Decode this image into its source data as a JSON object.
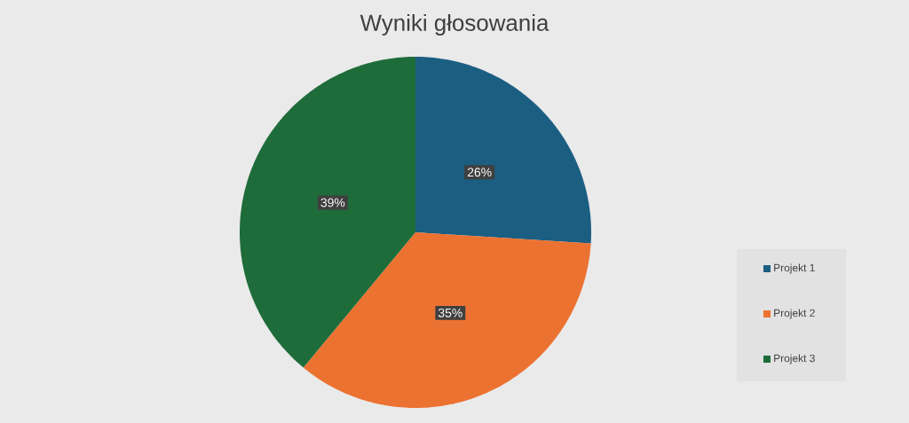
{
  "chart_data": {
    "type": "pie",
    "title": "Wyniki głosowania",
    "categories": [
      "Projekt 1",
      "Projekt 2",
      "Projekt 3"
    ],
    "values": [
      26,
      35,
      39
    ],
    "colors": [
      "#1b5e82",
      "#ec7231",
      "#1e6c3a"
    ],
    "value_labels": [
      "26%",
      "35%",
      "39%"
    ],
    "legend": "bottom right"
  }
}
